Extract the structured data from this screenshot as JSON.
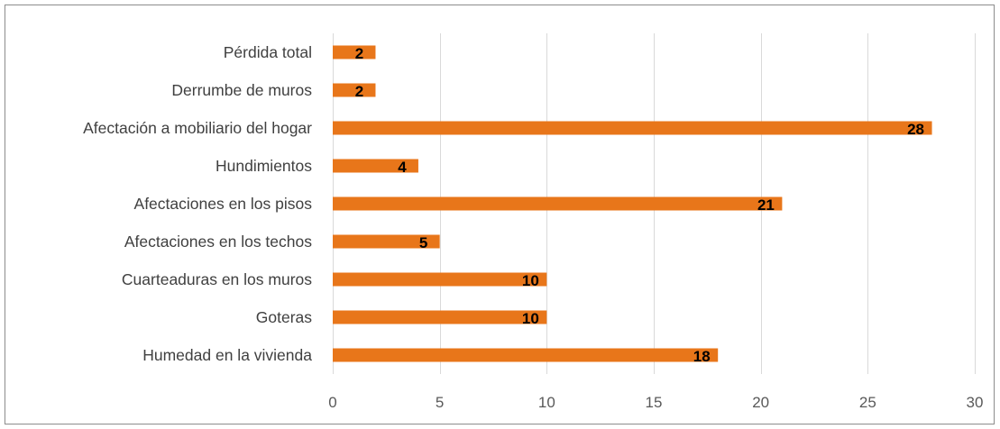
{
  "chart_data": {
    "type": "bar",
    "orientation": "horizontal",
    "categories": [
      "Pérdida total",
      "Derrumbe de muros",
      "Afectación a mobiliario del hogar",
      "Hundimientos",
      "Afectaciones en los pisos",
      "Afectaciones en los techos",
      "Cuarteaduras en los muros",
      "Goteras",
      "Humedad en la vivienda"
    ],
    "values": [
      2,
      2,
      28,
      4,
      21,
      5,
      10,
      10,
      18
    ],
    "xlim": [
      0,
      30
    ],
    "xticks": [
      "0",
      "5",
      "10",
      "15",
      "20",
      "25",
      "30"
    ],
    "grid": "vertical",
    "legend": "none",
    "bar_color": "#E8761A",
    "data_labels": true
  }
}
